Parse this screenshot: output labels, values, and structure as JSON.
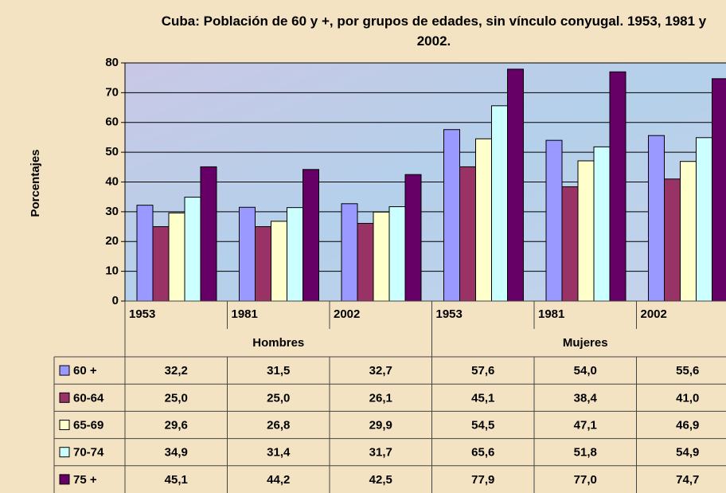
{
  "chart_data": {
    "type": "bar",
    "title": "Cuba: Población de 60 y +, por grupos de edades, sin vínculo conyugal. 1953, 1981 y 2002.",
    "ylabel": "Porcentajes",
    "categories": [
      "1953",
      "1981",
      "2002",
      "1953",
      "1981",
      "2002"
    ],
    "groups": [
      "Hombres",
      "Mujeres"
    ],
    "series": [
      {
        "name": "60 +",
        "color": "#9999ff",
        "values": [
          32.2,
          31.5,
          32.7,
          57.6,
          54.0,
          55.6
        ],
        "value_labels": [
          "32,2",
          "31,5",
          "32,7",
          "57,6",
          "54,0",
          "55,6"
        ]
      },
      {
        "name": "60-64",
        "color": "#993366",
        "values": [
          25.0,
          25.0,
          26.1,
          45.1,
          38.4,
          41.0
        ],
        "value_labels": [
          "25,0",
          "25,0",
          "26,1",
          "45,1",
          "38,4",
          "41,0"
        ]
      },
      {
        "name": "65-69",
        "color": "#ffffcc",
        "values": [
          29.6,
          26.8,
          29.9,
          54.5,
          47.1,
          46.9
        ],
        "value_labels": [
          "29,6",
          "26,8",
          "29,9",
          "54,5",
          "47,1",
          "46,9"
        ]
      },
      {
        "name": "70-74",
        "color": "#ccffff",
        "values": [
          34.9,
          31.4,
          31.7,
          65.6,
          51.8,
          54.9
        ],
        "value_labels": [
          "34,9",
          "31,4",
          "31,7",
          "65,6",
          "51,8",
          "54,9"
        ]
      },
      {
        "name": "75 +",
        "color": "#660066",
        "values": [
          45.1,
          44.2,
          42.5,
          77.9,
          77.0,
          74.7
        ],
        "value_labels": [
          "45,1",
          "44,2",
          "42,5",
          "77,9",
          "77,0",
          "74,7"
        ]
      }
    ],
    "ylim": [
      0,
      80
    ],
    "yticks": [
      0,
      10,
      20,
      30,
      40,
      50,
      60,
      70,
      80
    ],
    "grid": true
  }
}
